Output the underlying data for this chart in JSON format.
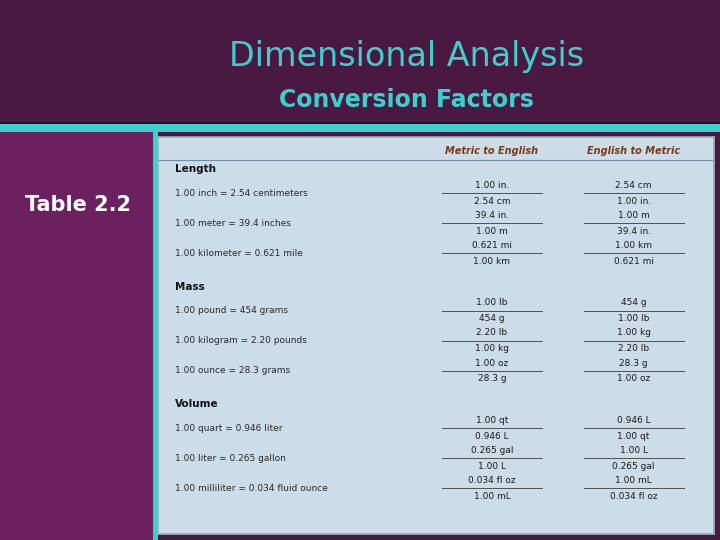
{
  "title": "Dimensional Analysis",
  "subtitle": "Conversion Factors",
  "table_label": "Table 2.2",
  "bg_color": "#4a1942",
  "teal_color": "#3ecece",
  "table_bg": "#ccdce8",
  "sidebar_bg": "#6b2060",
  "col1_header": "Metric to English",
  "col2_header": "English to Metric",
  "col_header_color": "#7a3810",
  "sections": [
    {
      "name": "Length",
      "rows": [
        {
          "label": "1.00 inch = 2.54 centimeters",
          "mte_top": "1.00 in.",
          "mte_bot": "2.54 cm",
          "etm_top": "2.54 cm",
          "etm_bot": "1.00 in."
        },
        {
          "label": "1.00 meter = 39.4 inches",
          "mte_top": "39.4 in.",
          "mte_bot": "1.00 m",
          "etm_top": "1.00 m",
          "etm_bot": "39.4 in."
        },
        {
          "label": "1.00 kilometer = 0.621 mile",
          "mte_top": "0.621 mi",
          "mte_bot": "1.00 km",
          "etm_top": "1.00 km",
          "etm_bot": "0.621 mi"
        }
      ]
    },
    {
      "name": "Mass",
      "rows": [
        {
          "label": "1.00 pound = 454 grams",
          "mte_top": "1.00 lb",
          "mte_bot": "454 g",
          "etm_top": "454 g",
          "etm_bot": "1.00 lb"
        },
        {
          "label": "1.00 kilogram = 2.20 pounds",
          "mte_top": "2.20 lb",
          "mte_bot": "1.00 kg",
          "etm_top": "1.00 kg",
          "etm_bot": "2.20 lb"
        },
        {
          "label": "1.00 ounce = 28.3 grams",
          "mte_top": "1.00 oz",
          "mte_bot": "28.3 g",
          "etm_top": "28.3 g",
          "etm_bot": "1.00 oz"
        }
      ]
    },
    {
      "name": "Volume",
      "rows": [
        {
          "label": "1.00 quart = 0.946 liter",
          "mte_top": "1.00 qt",
          "mte_bot": "0.946 L",
          "etm_top": "0.946 L",
          "etm_bot": "1.00 qt"
        },
        {
          "label": "1.00 liter = 0.265 gallon",
          "mte_top": "0.265 gal",
          "mte_bot": "1.00 L",
          "etm_top": "1.00 L",
          "etm_bot": "0.265 gal"
        },
        {
          "label": "1.00 milliliter = 0.034 fluid ounce",
          "mte_top": "0.034 fl oz",
          "mte_bot": "1.00 mL",
          "etm_top": "1.00 mL",
          "etm_bot": "0.034 fl oz"
        }
      ]
    }
  ]
}
